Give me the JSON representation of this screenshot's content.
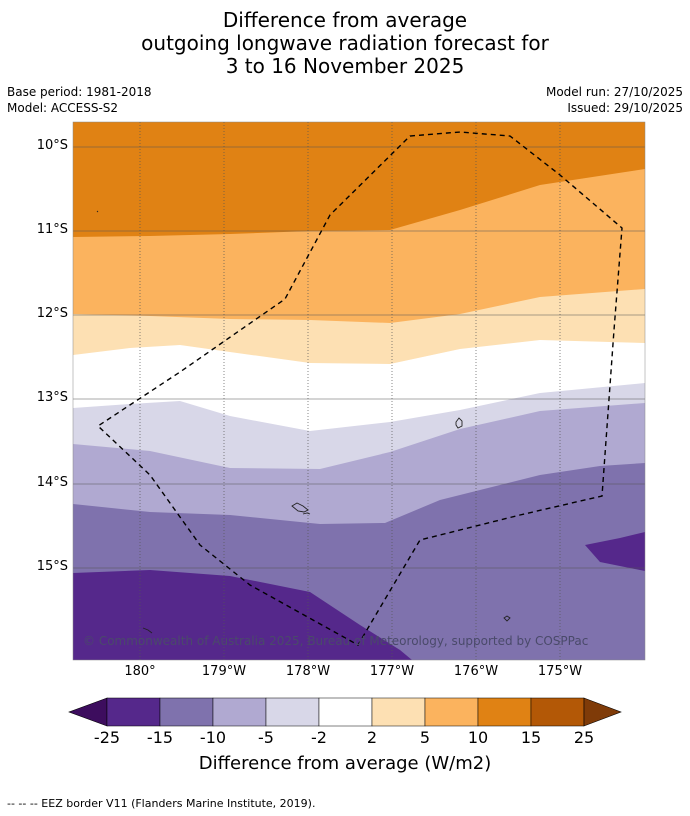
{
  "title": {
    "line1": "Difference from average",
    "line2": "outgoing longwave radiation forecast for",
    "line3": "3 to 16 November 2025"
  },
  "meta": {
    "base_period": "Base period: 1981-2018",
    "model": "Model: ACCESS-S2",
    "model_run": "Model run: 27/10/2025",
    "issued": "Issued: 29/10/2025"
  },
  "map": {
    "lat_labels": [
      "10°S",
      "11°S",
      "12°S",
      "13°S",
      "14°S",
      "15°S"
    ],
    "lon_labels": [
      "180°",
      "179°W",
      "178°W",
      "177°W",
      "176°W",
      "175°W"
    ],
    "copyright": "© Commonwealth of Australia 2025, Bureau of Meteorology, supported by COSPPac"
  },
  "colorbar": {
    "ticks": [
      "-25",
      "-15",
      "-10",
      "-5",
      "-2",
      "2",
      "5",
      "10",
      "15",
      "25"
    ],
    "colors": [
      "#3d0d5e",
      "#55288b",
      "#7f72ad",
      "#b0a9d1",
      "#d8d7e8",
      "#ffffff",
      "#fde0b3",
      "#fbb35e",
      "#e08214",
      "#b35806",
      "#7f3b08"
    ],
    "label": "Difference from average (W/m2)"
  },
  "legend": {
    "eez": "--  --  -- EEZ border V11 (Flanders Marine Institute, 2019)."
  }
}
